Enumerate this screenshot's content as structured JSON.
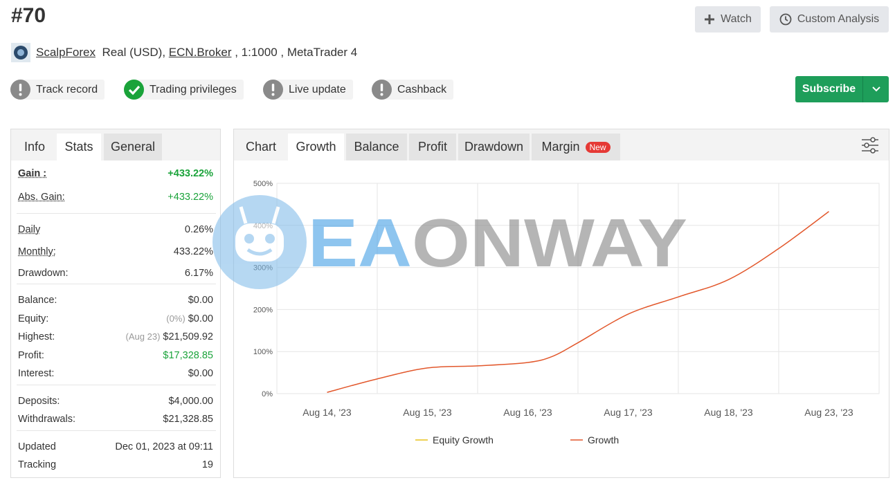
{
  "header": {
    "title": "#70",
    "buttons": [
      "Watch",
      "Custom Analysis"
    ],
    "broker_link": "ScalpForex",
    "account": "Real (USD), ",
    "server_link": "ECN.Broker",
    "details": " , 1:1000 , MetaTrader 4"
  },
  "badges": [
    {
      "label": "Track record",
      "status": "warning"
    },
    {
      "label": "Trading privileges",
      "status": "ok"
    },
    {
      "label": "Live update",
      "status": "warning"
    },
    {
      "label": "Cashback",
      "status": "warning"
    }
  ],
  "subscribe": "Subscribe",
  "stats_tabs": {
    "tabs": [
      "Info",
      "Stats",
      "General"
    ],
    "active": 1
  },
  "stats": [
    [
      {
        "label": "Gain :",
        "value": "+433.22%"
      },
      {
        "label": "Abs. Gain:",
        "value": "+433.22%"
      }
    ],
    [
      {
        "label": "Daily",
        "value": "0.26%"
      },
      {
        "label": "Monthly:",
        "value": "433.22%"
      },
      {
        "label": "Drawdown:",
        "value": "6.17%"
      }
    ],
    [
      {
        "label": "Balance:",
        "value": "$0.00"
      },
      {
        "label": "Equity:",
        "note": "(0%)",
        "value": "$0.00"
      },
      {
        "label": "Highest:",
        "note": "(Aug 23)",
        "value": "$21,509.92"
      },
      {
        "label": "Profit:",
        "value": "$17,328.85"
      },
      {
        "label": "Interest:",
        "value": "$0.00"
      }
    ],
    [
      {
        "label": "Deposits:",
        "value": "$4,000.00"
      },
      {
        "label": "Withdrawals:",
        "value": "$21,328.85"
      }
    ],
    [
      {
        "label": "Updated",
        "value": "Dec 01, 2023 at 09:11"
      },
      {
        "label": "Tracking",
        "value": "19"
      }
    ]
  ],
  "chart_tabs": {
    "title": "Chart",
    "tabs": [
      "Growth",
      "Balance",
      "Profit",
      "Drawdown",
      "Margin"
    ],
    "active": 0,
    "badge": "New"
  },
  "watermark": {
    "accent": "EA",
    "rest": "ONWAY"
  },
  "chart_data": {
    "type": "line",
    "x": [
      0,
      0.5,
      1,
      1.5,
      2,
      2.25,
      2.5,
      3,
      3.5,
      4,
      4.5,
      5
    ],
    "xlim": [
      -0.5,
      5.5
    ],
    "xticks": [
      {
        "value": 0,
        "label": "Aug 14, '23"
      },
      {
        "value": 1,
        "label": "Aug 15, '23"
      },
      {
        "value": 2,
        "label": "Aug 16, '23"
      },
      {
        "value": 3,
        "label": "Aug 17, '23"
      },
      {
        "value": 4,
        "label": "Aug 18, '23"
      },
      {
        "value": 5,
        "label": "Aug 23, '23"
      }
    ],
    "ylim": [
      0,
      500
    ],
    "yticks": [
      {
        "value": 0,
        "label": "0%"
      },
      {
        "value": 100,
        "label": "100%"
      },
      {
        "value": 200,
        "label": "200%"
      },
      {
        "value": 300,
        "label": "300%"
      },
      {
        "value": 400,
        "label": "400%"
      },
      {
        "value": 500,
        "label": "500%"
      }
    ],
    "grid": true,
    "legend": "bottom",
    "series": [
      {
        "name": "Equity Growth",
        "color": "#e8c21a",
        "values": [
          null,
          null,
          null,
          null,
          null,
          null,
          null,
          null,
          null,
          null,
          null,
          null
        ]
      },
      {
        "name": "Growth",
        "color": "#e2572b",
        "values": [
          3,
          35,
          61,
          66,
          74,
          89,
          121,
          189,
          230,
          271,
          345,
          433
        ]
      }
    ]
  }
}
